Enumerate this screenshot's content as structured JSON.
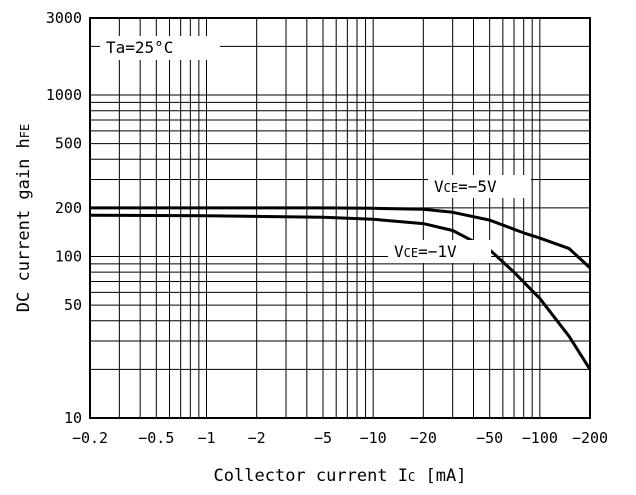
{
  "chart_data": {
    "type": "line",
    "x_scale": "log",
    "y_scale": "log",
    "xlim": [
      -0.2,
      -200
    ],
    "ylim": [
      10,
      3000
    ],
    "grid": true,
    "xlabel_parts": {
      "main": "Collector current I",
      "sub": "C",
      "tail": " [mA]"
    },
    "ylabel_parts": {
      "main": "DC current gain h",
      "sub": "FE"
    },
    "x_ticks": [
      {
        "value": -0.2,
        "label": "−0.2"
      },
      {
        "value": -0.5,
        "label": "−0.5"
      },
      {
        "value": -1,
        "label": "−1"
      },
      {
        "value": -2,
        "label": "−2"
      },
      {
        "value": -5,
        "label": "−5"
      },
      {
        "value": -10,
        "label": "−10"
      },
      {
        "value": -20,
        "label": "−20"
      },
      {
        "value": -50,
        "label": "−50"
      },
      {
        "value": -100,
        "label": "−100"
      },
      {
        "value": -200,
        "label": "−200"
      }
    ],
    "y_ticks": [
      {
        "value": 10,
        "label": "10"
      },
      {
        "value": 50,
        "label": "50"
      },
      {
        "value": 100,
        "label": "100"
      },
      {
        "value": 200,
        "label": "200"
      },
      {
        "value": 500,
        "label": "500"
      },
      {
        "value": 1000,
        "label": "1000"
      },
      {
        "value": 3000,
        "label": "3000"
      }
    ],
    "annotations": {
      "temp": "Ta=25°C",
      "series_label_main": "V",
      "series_label_sub": "CE"
    },
    "series": [
      {
        "name": "VCE=−5V",
        "label_value": "=−5V",
        "x": [
          -0.2,
          -1,
          -5,
          -10,
          -20,
          -30,
          -50,
          -80,
          -100,
          -150,
          -200
        ],
        "y": [
          200,
          200,
          200,
          199,
          196,
          188,
          168,
          140,
          130,
          112,
          85
        ]
      },
      {
        "name": "VCE=−1V",
        "label_value": "=−1V",
        "x": [
          -0.2,
          -1,
          -5,
          -10,
          -20,
          -30,
          -50,
          -70,
          -100,
          -150,
          -200
        ],
        "y": [
          180,
          179,
          175,
          170,
          160,
          145,
          110,
          80,
          55,
          32,
          20
        ]
      }
    ]
  }
}
